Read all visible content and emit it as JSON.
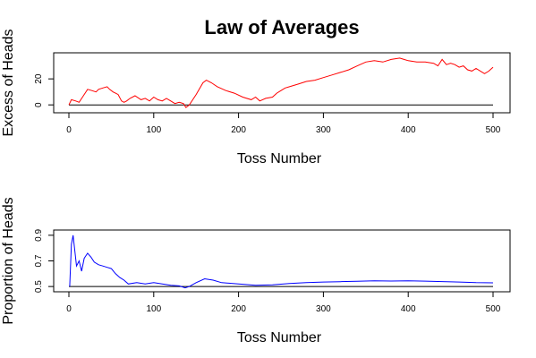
{
  "figure": {
    "title": "Law of Averages"
  },
  "chart_data": [
    {
      "type": "line",
      "title": "",
      "xlabel": "Toss Number",
      "ylabel": "Excess of Heads",
      "xlim": [
        0,
        500
      ],
      "ylim": [
        -4,
        38
      ],
      "xticks": [
        0,
        100,
        200,
        300,
        400,
        500
      ],
      "yticks": [
        0,
        20
      ],
      "reference_line": 0,
      "series": [
        {
          "color": "#ff0000",
          "x": [
            0,
            3,
            8,
            12,
            18,
            22,
            27,
            32,
            35,
            40,
            45,
            48,
            52,
            55,
            58,
            62,
            65,
            68,
            72,
            78,
            85,
            90,
            95,
            100,
            105,
            110,
            115,
            120,
            125,
            130,
            135,
            138,
            142,
            150,
            158,
            162,
            168,
            175,
            185,
            195,
            205,
            215,
            220,
            225,
            232,
            240,
            245,
            250,
            255,
            260,
            270,
            280,
            290,
            300,
            310,
            320,
            330,
            340,
            350,
            360,
            370,
            380,
            390,
            395,
            400,
            410,
            420,
            430,
            435,
            440,
            445,
            450,
            455,
            460,
            465,
            470,
            475,
            480,
            485,
            490,
            495,
            500
          ],
          "y": [
            0,
            4,
            3,
            2,
            8,
            12,
            11,
            10,
            12,
            13,
            14,
            12,
            10,
            9,
            8,
            3,
            2,
            3,
            5,
            7,
            4,
            5,
            3,
            6,
            4,
            3,
            5,
            3,
            1,
            2,
            1,
            -2,
            0,
            8,
            17,
            19,
            17,
            14,
            11,
            9,
            6,
            4,
            6,
            3,
            5,
            6,
            9,
            11,
            13,
            14,
            16,
            18,
            19,
            21,
            23,
            25,
            27,
            30,
            33,
            34,
            33,
            35,
            36,
            35,
            34,
            33,
            33,
            32,
            30,
            35,
            31,
            32,
            31,
            29,
            30,
            27,
            26,
            28,
            26,
            24,
            26,
            29
          ]
        }
      ]
    },
    {
      "type": "line",
      "title": "",
      "xlabel": "Toss Number",
      "ylabel": "Proportion of Heads",
      "xlim": [
        0,
        500
      ],
      "ylim": [
        0.48,
        0.92
      ],
      "xticks": [
        0,
        100,
        200,
        300,
        400,
        500
      ],
      "yticks": [
        0.5,
        0.7,
        0.9
      ],
      "reference_line": 0.5,
      "series": [
        {
          "color": "#0000ff",
          "x": [
            1,
            3,
            5,
            7,
            9,
            12,
            15,
            18,
            22,
            26,
            30,
            35,
            40,
            45,
            50,
            55,
            60,
            65,
            70,
            80,
            90,
            100,
            110,
            120,
            130,
            137,
            142,
            150,
            160,
            170,
            180,
            200,
            220,
            240,
            260,
            280,
            300,
            320,
            340,
            360,
            380,
            400,
            420,
            440,
            460,
            480,
            500
          ],
          "y": [
            0.5,
            0.83,
            0.9,
            0.78,
            0.66,
            0.7,
            0.62,
            0.72,
            0.76,
            0.73,
            0.69,
            0.67,
            0.66,
            0.65,
            0.64,
            0.6,
            0.57,
            0.55,
            0.52,
            0.53,
            0.52,
            0.53,
            0.52,
            0.51,
            0.505,
            0.49,
            0.5,
            0.53,
            0.56,
            0.55,
            0.53,
            0.52,
            0.51,
            0.513,
            0.523,
            0.531,
            0.535,
            0.538,
            0.541,
            0.545,
            0.543,
            0.544,
            0.542,
            0.539,
            0.535,
            0.53,
            0.529
          ]
        }
      ]
    }
  ]
}
